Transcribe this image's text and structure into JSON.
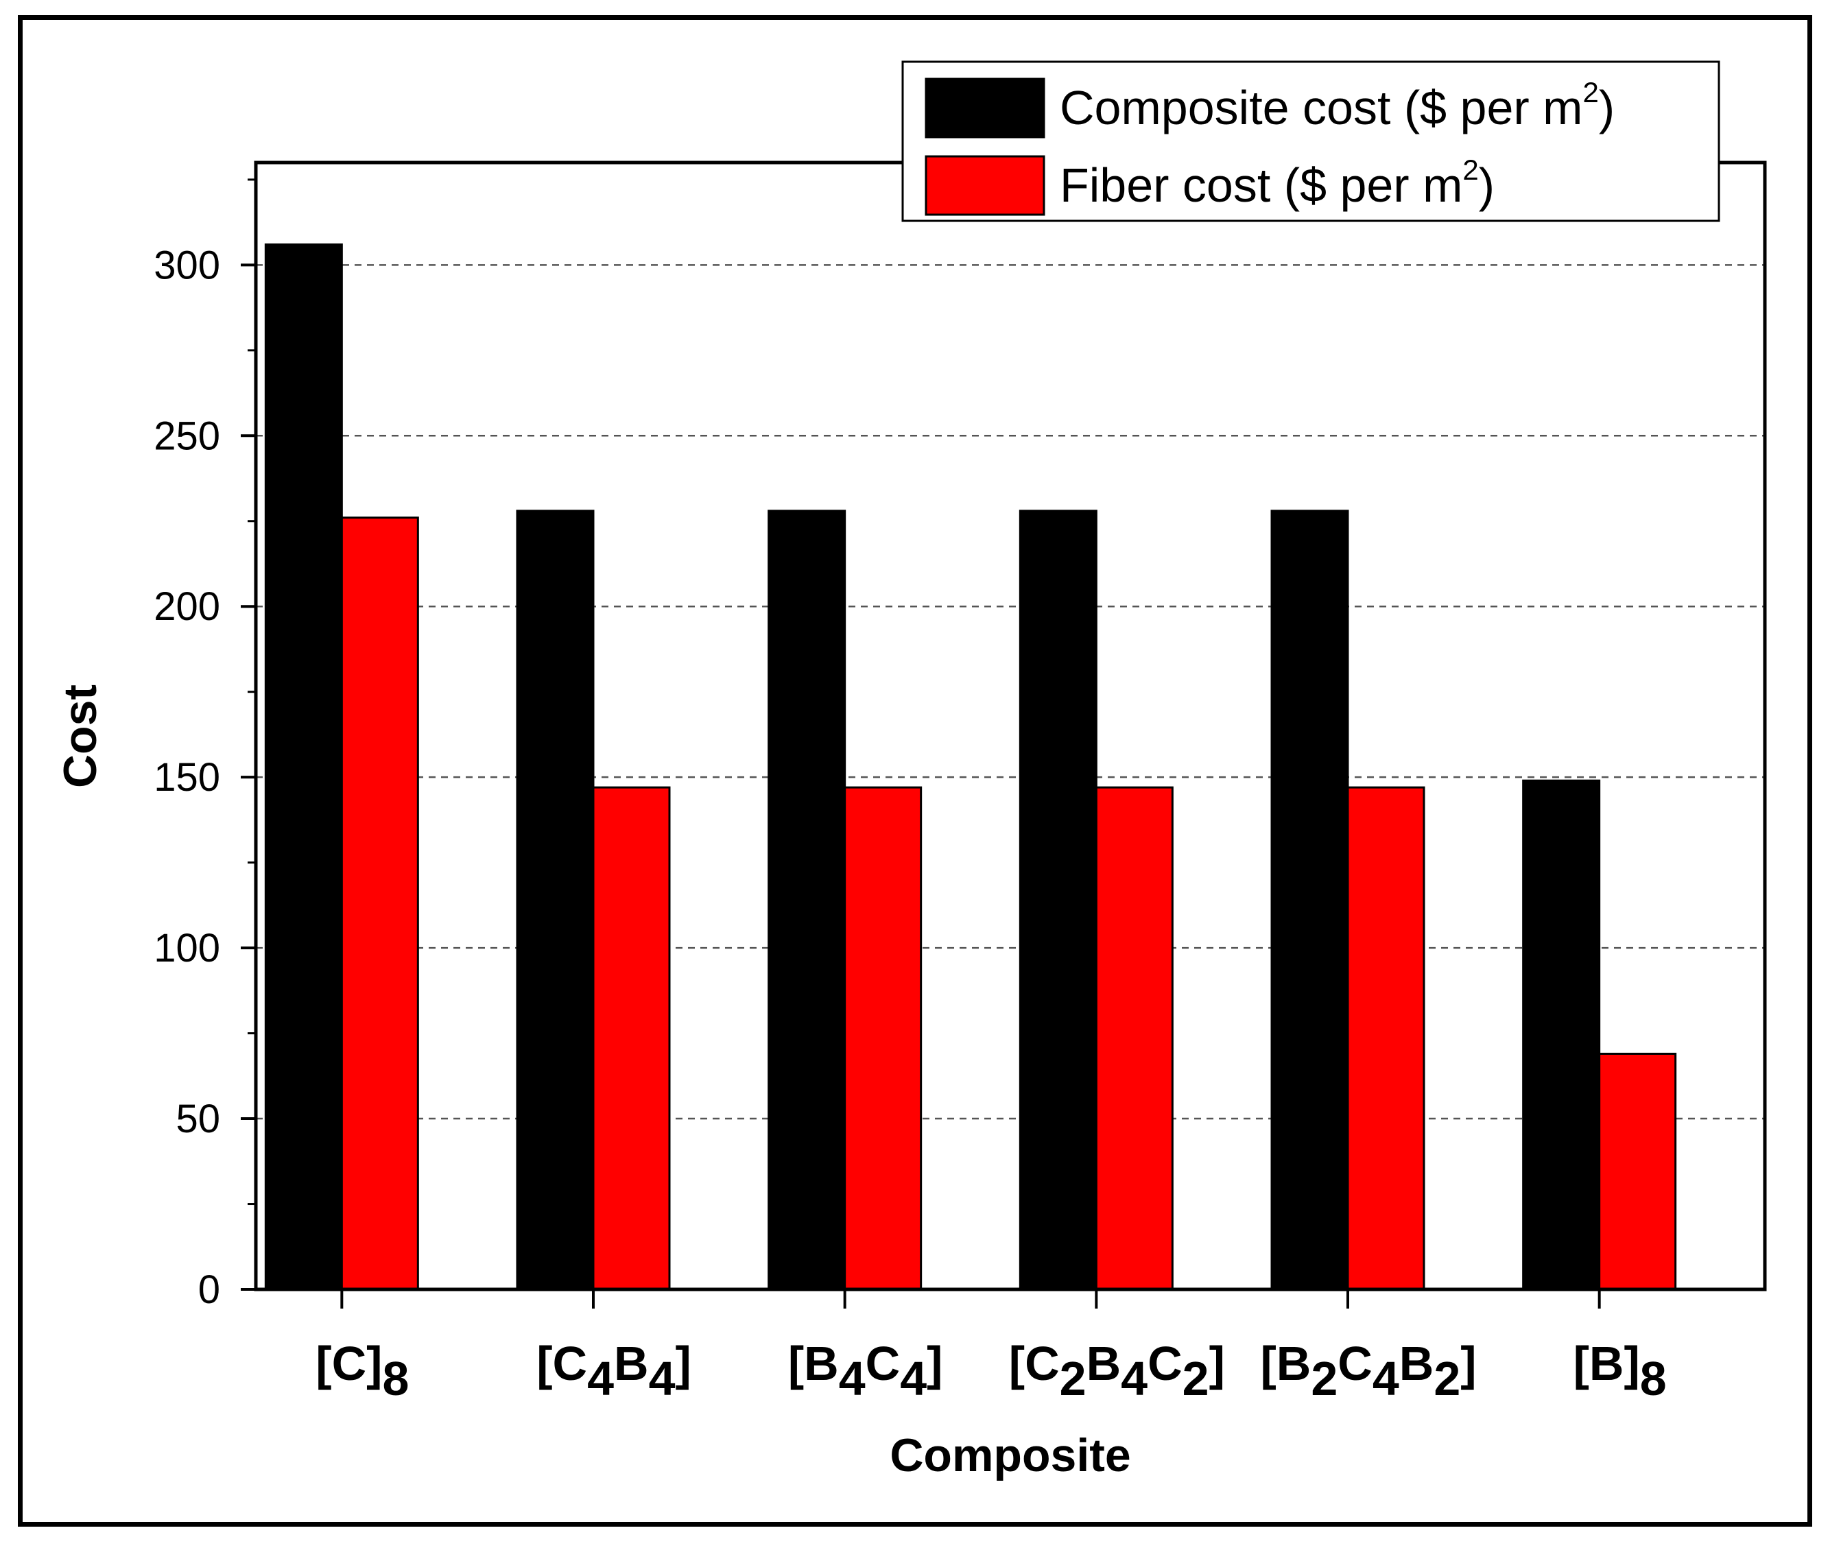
{
  "chart_data": {
    "type": "bar",
    "title": "",
    "xlabel": "Composite",
    "ylabel": "Cost",
    "ylim": [
      0,
      330
    ],
    "yticks": [
      0,
      50,
      100,
      150,
      200,
      250,
      300
    ],
    "y_minor_step": 25,
    "grid": "horizontal dashed at major ticks",
    "legend_position": "top-right",
    "categories": [
      {
        "base": "[C]",
        "sub": "8",
        "tail": ""
      },
      {
        "base": "[C",
        "sub": "4",
        "base2": "B",
        "sub2": "4",
        "tail": "]"
      },
      {
        "base": "[B",
        "sub": "4",
        "base2": "C",
        "sub2": "4",
        "tail": "]"
      },
      {
        "base": "[C",
        "sub": "2",
        "base2": "B",
        "sub2": "4",
        "base3": "C",
        "sub3": "2",
        "tail": "]"
      },
      {
        "base": "[B",
        "sub": "2",
        "base2": "C",
        "sub2": "4",
        "base3": "B",
        "sub3": "2",
        "tail": "]"
      },
      {
        "base": "[B]",
        "sub": "8",
        "tail": ""
      }
    ],
    "series": [
      {
        "name": "Composite cost ($ per m",
        "name_sup": "2",
        "name_tail": ")",
        "color": "#000000",
        "values": [
          306,
          228,
          228,
          228,
          228,
          149
        ]
      },
      {
        "name": "Fiber cost ($ per m",
        "name_sup": "2",
        "name_tail": ")",
        "color": "#ff0000",
        "values": [
          226,
          147,
          147,
          147,
          147,
          69
        ]
      }
    ]
  }
}
